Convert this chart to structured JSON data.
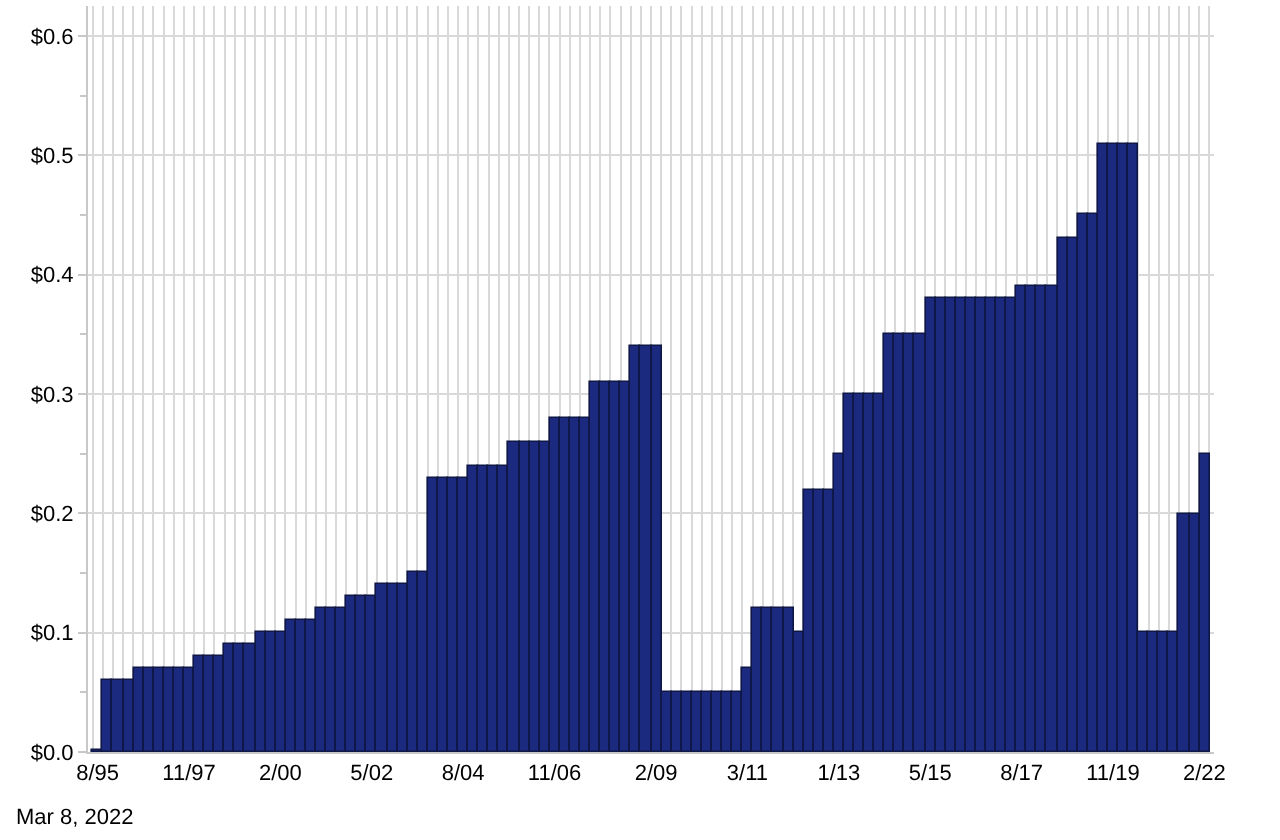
{
  "chart_data": {
    "type": "bar",
    "categories": [
      "8/95",
      null,
      null,
      null,
      null,
      null,
      null,
      null,
      null,
      "11/97",
      null,
      null,
      null,
      null,
      null,
      null,
      null,
      null,
      "2/00",
      null,
      null,
      null,
      null,
      null,
      null,
      null,
      null,
      "5/02",
      null,
      null,
      null,
      null,
      null,
      null,
      null,
      null,
      "8/04",
      null,
      null,
      null,
      null,
      null,
      null,
      null,
      null,
      "11/06",
      null,
      null,
      null,
      null,
      null,
      null,
      null,
      null,
      null,
      "2/09",
      null,
      null,
      null,
      null,
      null,
      null,
      null,
      null,
      "3/11",
      null,
      null,
      null,
      null,
      null,
      null,
      null,
      null,
      "1/13",
      null,
      null,
      null,
      null,
      null,
      null,
      null,
      null,
      "5/15",
      null,
      null,
      null,
      null,
      null,
      null,
      null,
      null,
      "8/17",
      null,
      null,
      null,
      null,
      null,
      null,
      null,
      null,
      "11/19",
      null,
      null,
      null,
      null,
      null,
      null,
      null,
      null,
      "2/22"
    ],
    "values": [
      0.002,
      0.06,
      0.06,
      0.06,
      0.07,
      0.07,
      0.07,
      0.07,
      0.07,
      0.07,
      0.08,
      0.08,
      0.08,
      0.09,
      0.09,
      0.09,
      0.1,
      0.1,
      0.1,
      0.11,
      0.11,
      0.11,
      0.12,
      0.12,
      0.12,
      0.13,
      0.13,
      0.13,
      0.14,
      0.14,
      0.14,
      0.15,
      0.15,
      0.23,
      0.23,
      0.23,
      0.23,
      0.24,
      0.24,
      0.24,
      0.24,
      0.26,
      0.26,
      0.26,
      0.26,
      0.28,
      0.28,
      0.28,
      0.28,
      0.31,
      0.31,
      0.31,
      0.31,
      0.34,
      0.34,
      0.34,
      0.05,
      0.05,
      0.05,
      0.05,
      0.05,
      0.05,
      0.05,
      0.05,
      0.07,
      0.12,
      0.12,
      0.12,
      0.12,
      0.1,
      0.22,
      0.22,
      0.22,
      0.25,
      0.3,
      0.3,
      0.3,
      0.3,
      0.35,
      0.35,
      0.35,
      0.35,
      0.38,
      0.38,
      0.38,
      0.38,
      0.38,
      0.38,
      0.38,
      0.38,
      0.38,
      0.39,
      0.39,
      0.39,
      0.39,
      0.43,
      0.43,
      0.45,
      0.45,
      0.51,
      0.51,
      0.51,
      0.51,
      0.1,
      0.1,
      0.1,
      0.1,
      0.2,
      0.2,
      0.25
    ],
    "color": "#1b2a7e",
    "ylim": [
      0,
      0.625
    ],
    "yticks": [
      {
        "value": 0,
        "label": "$0.0"
      },
      {
        "value": 0.05,
        "label": null
      },
      {
        "value": 0.1,
        "label": "$0.1"
      },
      {
        "value": 0.15,
        "label": null
      },
      {
        "value": 0.2,
        "label": "$0.2"
      },
      {
        "value": 0.25,
        "label": null
      },
      {
        "value": 0.3,
        "label": "$0.3"
      },
      {
        "value": 0.35,
        "label": null
      },
      {
        "value": 0.4,
        "label": "$0.4"
      },
      {
        "value": 0.45,
        "label": null
      },
      {
        "value": 0.5,
        "label": "$0.5"
      },
      {
        "value": 0.55,
        "label": null
      },
      {
        "value": 0.6,
        "label": "$0.6"
      }
    ],
    "grid": true,
    "annotations": [
      "Mar 8, 2022"
    ]
  }
}
